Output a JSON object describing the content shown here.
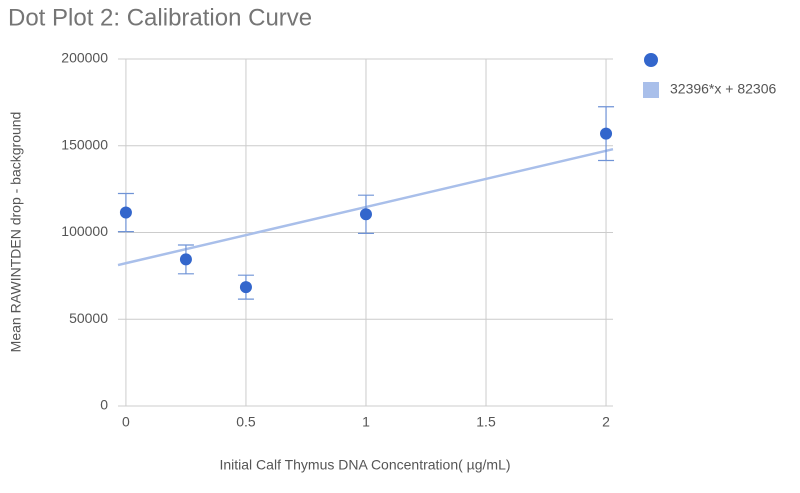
{
  "chart_data": {
    "type": "scatter",
    "title": "Dot Plot 2: Calibration Curve",
    "x_label": "Initial Calf Thymus DNA Concentration( µg/mL)",
    "y_label": "Mean RAWINTDEN drop - background",
    "x": [
      0,
      0.25,
      0.5,
      1,
      2
    ],
    "series": [
      {
        "color": "#3366cc",
        "error_color": "#6f93d6",
        "values": [
          111500,
          84500,
          68500,
          110500,
          157000
        ],
        "errors": [
          11000,
          8300,
          6900,
          11000,
          15500
        ]
      }
    ],
    "trendline": {
      "label": "32396*x + 82306",
      "slope": 32396,
      "intercept": 82306,
      "color": "#a9bfea"
    },
    "xlim": [
      -0.033,
      2.029
    ],
    "xticks": [
      0,
      0.5,
      1,
      1.5,
      2
    ],
    "ylim": [
      0,
      200000
    ],
    "yticks": [
      0,
      50000,
      100000,
      150000,
      200000
    ],
    "grid": true,
    "legend": "right"
  }
}
